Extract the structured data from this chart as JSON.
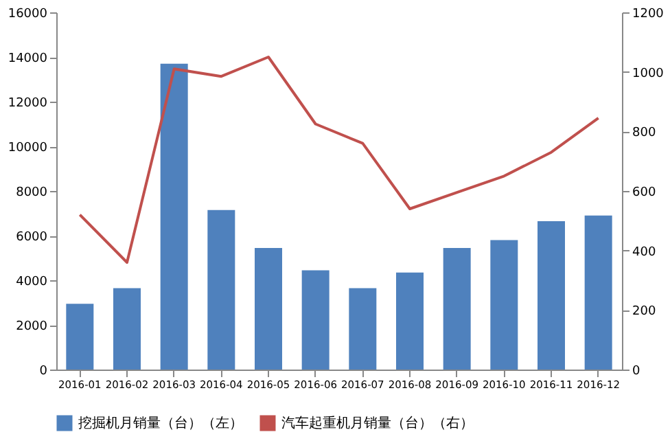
{
  "chart_data": {
    "type": "bar",
    "categories": [
      "2016-01",
      "2016-02",
      "2016-03",
      "2016-04",
      "2016-05",
      "2016-06",
      "2016-07",
      "2016-08",
      "2016-09",
      "2016-10",
      "2016-11",
      "2016-12"
    ],
    "series": [
      {
        "name": "挖掘机月销量（台）（左）",
        "color": "#4f81bd",
        "values": [
          2950,
          3650,
          13700,
          7150,
          5450,
          4450,
          3650,
          4350,
          5450,
          5800,
          6650,
          6900
        ]
      },
      {
        "name": "汽车起重机月销量（台）（右）",
        "type": "line",
        "axis": "y2",
        "color": "#c0504d",
        "values": [
          520,
          360,
          1010,
          985,
          1050,
          825,
          760,
          540,
          595,
          650,
          730,
          845
        ]
      }
    ],
    "ylim": [
      0,
      16000
    ],
    "yticks": [
      0,
      2000,
      4000,
      6000,
      8000,
      10000,
      12000,
      14000,
      16000
    ],
    "y2lim": [
      0,
      1200
    ],
    "y2ticks": [
      0,
      200,
      400,
      600,
      800,
      1000,
      1200
    ],
    "legend": "bottom",
    "grid": false,
    "marker": "none",
    "line_style": "solid"
  }
}
